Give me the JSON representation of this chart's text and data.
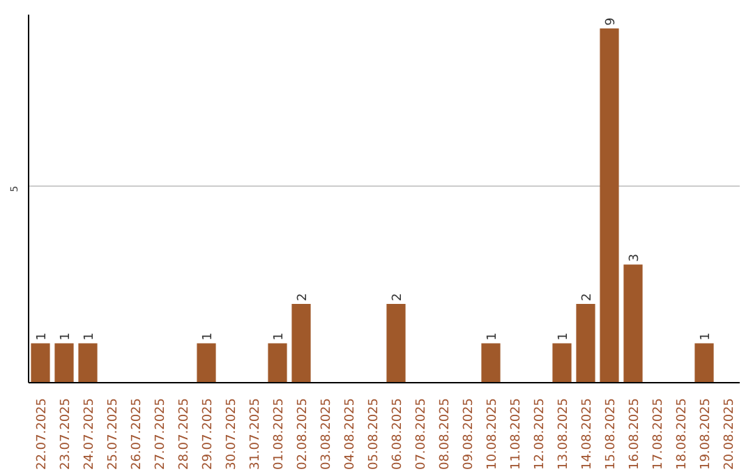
{
  "chart_data": {
    "type": "bar",
    "categories": [
      "22.07.2025",
      "23.07.2025",
      "24.07.2025",
      "25.07.2025",
      "26.07.2025",
      "27.07.2025",
      "28.07.2025",
      "29.07.2025",
      "30.07.2025",
      "31.07.2025",
      "01.08.2025",
      "02.08.2025",
      "03.08.2025",
      "04.08.2025",
      "05.08.2025",
      "06.08.2025",
      "07.08.2025",
      "08.08.2025",
      "09.08.2025",
      "10.08.2025",
      "11.08.2025",
      "12.08.2025",
      "13.08.2025",
      "14.08.2025",
      "15.08.2025",
      "16.08.2025",
      "17.08.2025",
      "18.08.2025",
      "19.08.2025",
      "20.08.2025"
    ],
    "values": [
      1,
      1,
      1,
      0,
      0,
      0,
      0,
      1,
      0,
      0,
      1,
      2,
      0,
      0,
      0,
      2,
      0,
      0,
      0,
      1,
      0,
      0,
      1,
      2,
      9,
      3,
      0,
      0,
      1,
      0
    ],
    "color": "#a0592a",
    "ylim": [
      0,
      9.35
    ],
    "yticks": [
      5
    ],
    "value_labels": [
      "1",
      "1",
      "1",
      null,
      null,
      null,
      null,
      "1",
      null,
      null,
      "1",
      "2",
      null,
      null,
      null,
      "2",
      null,
      null,
      null,
      "1",
      null,
      null,
      "1",
      "2",
      "9",
      "3",
      null,
      null,
      "1",
      null
    ],
    "grid": "y"
  }
}
